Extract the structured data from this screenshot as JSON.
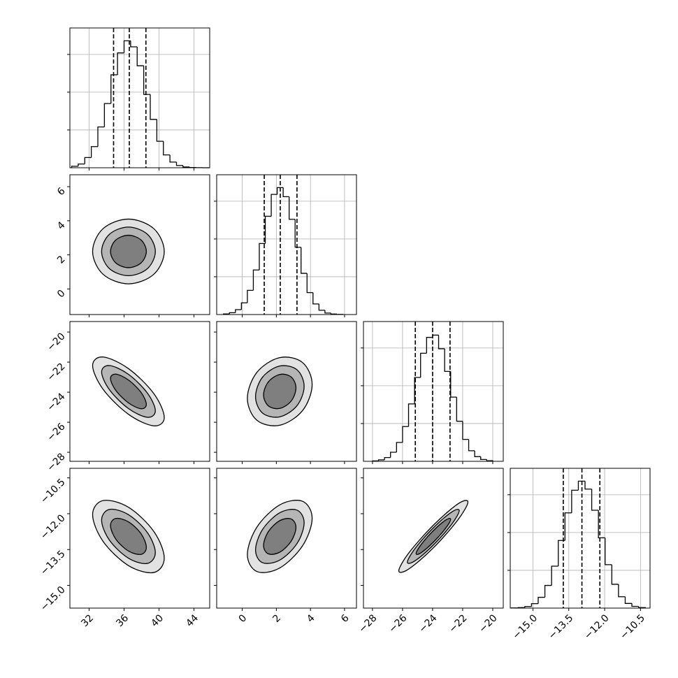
{
  "chart_data": {
    "type": "corner",
    "params": [
      {
        "lim": [
          29.8,
          45.8
        ],
        "ticks": [
          32,
          36,
          40,
          44
        ]
      },
      {
        "lim": [
          -1.5,
          6.7
        ],
        "ticks": [
          0,
          2,
          4,
          6
        ]
      },
      {
        "lim": [
          -28.6,
          -19.3
        ],
        "ticks": [
          {
            "value": -28,
            "label": "−28"
          },
          {
            "value": -26,
            "label": "−26"
          },
          {
            "value": -24,
            "label": "−24"
          },
          {
            "value": -22,
            "label": "−22"
          },
          {
            "value": -20,
            "label": "−20"
          }
        ]
      },
      {
        "lim": [
          -15.95,
          -10.1
        ],
        "ticks": [
          {
            "value": -15,
            "label": "−15.0"
          },
          {
            "value": -13.5,
            "label": "−13.5"
          },
          {
            "value": -12,
            "label": "−12.0"
          },
          {
            "value": -10.5,
            "label": "−10.5"
          }
        ]
      }
    ],
    "hist": [
      {
        "bins": [
          30,
          30.75,
          31.5,
          32.25,
          33,
          33.75,
          34.5,
          35.25,
          36,
          36.75,
          37.5,
          38.25,
          39,
          39.75,
          40.5,
          41.25,
          42,
          42.75,
          43.5,
          44.25,
          45,
          45.75
        ],
        "counts": [
          20,
          50,
          135,
          280,
          540,
          850,
          1230,
          1520,
          1680,
          1600,
          1350,
          970,
          640,
          350,
          170,
          75,
          30,
          10,
          3,
          1,
          0
        ],
        "quantiles": [
          34.8,
          36.6,
          38.5
        ],
        "ylim": [
          0,
          1850
        ],
        "yticks": [
          500,
          1000,
          1500
        ]
      },
      {
        "bins": [
          -1.1,
          -0.75,
          -0.4,
          -0.05,
          0.3,
          0.65,
          1,
          1.35,
          1.7,
          2.05,
          2.4,
          2.75,
          3.1,
          3.45,
          3.8,
          4.15,
          4.5,
          4.85,
          5.2,
          5.55,
          5.9
        ],
        "counts": [
          8,
          24,
          65,
          155,
          320,
          590,
          940,
          1300,
          1590,
          1680,
          1560,
          1260,
          890,
          545,
          290,
          140,
          57,
          20,
          7,
          2
        ],
        "quantiles": [
          1.29,
          2.23,
          3.21
        ],
        "ylim": [
          0,
          1850
        ],
        "yticks": [
          500,
          1000,
          1500
        ]
      },
      {
        "bins": [
          -28,
          -27.6,
          -27.2,
          -26.8,
          -26.4,
          -26,
          -25.6,
          -25.2,
          -24.8,
          -24.4,
          -24,
          -23.6,
          -23.2,
          -22.8,
          -22.4,
          -22,
          -21.6,
          -21.2,
          -20.8,
          -20.4,
          -20
        ],
        "counts": [
          6,
          19,
          50,
          120,
          250,
          460,
          760,
          1110,
          1430,
          1640,
          1670,
          1490,
          1190,
          850,
          530,
          290,
          140,
          62,
          24,
          8
        ],
        "quantiles": [
          -25.15,
          -24.0,
          -22.84
        ],
        "ylim": [
          0,
          1850
        ],
        "yticks": [
          500,
          1000,
          1500
        ]
      },
      {
        "bins": [
          -15.9,
          -15.62,
          -15.34,
          -15.06,
          -14.78,
          -14.5,
          -14.22,
          -13.94,
          -13.66,
          -13.38,
          -13.1,
          -12.82,
          -12.54,
          -12.26,
          -11.98,
          -11.7,
          -11.42,
          -11.14,
          -10.86,
          -10.58,
          -10.3
        ],
        "counts": [
          2,
          7,
          21,
          59,
          143,
          300,
          555,
          895,
          1260,
          1560,
          1680,
          1575,
          1295,
          930,
          575,
          315,
          150,
          62,
          23,
          7
        ],
        "quantiles": [
          -13.73,
          -12.95,
          -12.2
        ],
        "ylim": [
          0,
          1850
        ],
        "yticks": [
          500,
          1000,
          1500
        ]
      }
    ],
    "pairs": [
      {
        "contours": [
          {
            "x": [
              40.6,
              39.4,
              36.5,
              33.6,
              32.4,
              33.6,
              36.5,
              39.4
            ],
            "y": [
              2.2,
              3.54,
              4.1,
              3.54,
              2.2,
              0.86,
              0.3,
              0.86
            ]
          },
          {
            "x": [
              39.58,
              38.67,
              36.5,
              34.33,
              33.43,
              34.33,
              36.5,
              38.67
            ],
            "y": [
              2.2,
              3.21,
              3.63,
              3.21,
              2.2,
              1.19,
              0.78,
              1.19
            ]
          },
          {
            "x": [
              38.55,
              37.95,
              36.5,
              35.05,
              34.45,
              35.05,
              36.5,
              37.95
            ],
            "y": [
              2.2,
              2.87,
              3.15,
              2.87,
              2.2,
              1.53,
              1.25,
              1.53
            ]
          }
        ]
      },
      {
        "contours": [
          {
            "x": [
              40.6,
              39.4,
              36.5,
              33.6,
              32.4,
              33.6,
              36.5,
              39.4
            ],
            "y": [
              -25.68,
              -24.09,
              -22.43,
              -21.66,
              -22.23,
              -23.81,
              -25.47,
              -26.24
            ]
          },
          {
            "x": [
              39.58,
              38.67,
              36.5,
              34.33,
              33.43,
              34.33,
              36.5,
              38.67
            ],
            "y": [
              -25.24,
              -24.06,
              -22.81,
              -22.23,
              -22.66,
              -23.84,
              -25.09,
              -25.67
            ]
          },
          {
            "x": [
              38.55,
              37.95,
              36.5,
              35.05,
              34.45,
              35.05,
              36.5,
              37.95
            ],
            "y": [
              -24.81,
              -24.02,
              -23.19,
              -22.8,
              -23.09,
              -23.88,
              -24.71,
              -25.1
            ]
          }
        ]
      },
      {
        "contours": [
          {
            "x": [
              4.1,
              3.54,
              2.2,
              0.86,
              0.3,
              0.86,
              2.2,
              3.54
            ],
            "y": [
              -23.49,
              -22.03,
              -21.7,
              -22.68,
              -24.41,
              -25.87,
              -26.2,
              -25.22
            ]
          },
          {
            "x": [
              3.63,
              3.21,
              2.2,
              1.19,
              0.78,
              1.19,
              2.2,
              3.21
            ],
            "y": [
              -23.61,
              -22.51,
              -22.26,
              -23.0,
              -24.3,
              -25.39,
              -25.64,
              -24.9
            ]
          },
          {
            "x": [
              3.15,
              2.87,
              2.2,
              1.53,
              1.25,
              1.53,
              2.2,
              2.87
            ],
            "y": [
              -23.72,
              -22.99,
              -22.82,
              -23.32,
              -24.18,
              -24.91,
              -25.08,
              -24.59
            ]
          }
        ]
      },
      {
        "contours": [
          {
            "x": [
              40.6,
              39.4,
              36.5,
              33.6,
              32.4,
              33.6,
              36.5,
              39.4
            ],
            "y": [
              -13.86,
              -12.74,
              -11.73,
              -11.45,
              -12.04,
              -13.16,
              -14.17,
              -14.46
            ]
          },
          {
            "x": [
              39.58,
              38.67,
              36.5,
              34.33,
              33.43,
              34.33,
              36.5,
              38.67
            ],
            "y": [
              -13.63,
              -12.79,
              -12.04,
              -11.82,
              -12.27,
              -13.11,
              -13.86,
              -14.08
            ]
          },
          {
            "x": [
              38.55,
              37.95,
              36.5,
              35.05,
              34.45,
              35.05,
              36.5,
              37.95
            ],
            "y": [
              -13.41,
              -12.84,
              -12.34,
              -12.2,
              -12.49,
              -13.06,
              -13.56,
              -13.7
            ]
          }
        ]
      },
      {
        "contours": [
          {
            "x": [
              4.1,
              3.54,
              2.2,
              0.86,
              0.3,
              0.86,
              2.2,
              3.54
            ],
            "y": [
              -12.19,
              -11.48,
              -11.63,
              -12.56,
              -13.71,
              -14.42,
              -14.27,
              -13.34
            ]
          },
          {
            "x": [
              3.63,
              3.21,
              2.2,
              1.19,
              0.78,
              1.19,
              2.2,
              3.21
            ],
            "y": [
              -12.38,
              -11.85,
              -11.96,
              -12.66,
              -13.52,
              -14.05,
              -13.94,
              -13.25
            ]
          },
          {
            "x": [
              3.15,
              2.87,
              2.2,
              1.53,
              1.25,
              1.53,
              2.2,
              2.87
            ],
            "y": [
              -12.57,
              -12.22,
              -12.29,
              -12.75,
              -13.33,
              -13.68,
              -13.61,
              -13.15
            ]
          }
        ]
      },
      {
        "contours": [
          {
            "x": [
              -21.65,
              -22.32,
              -23.95,
              -25.58,
              -26.25,
              -25.58,
              -23.95,
              -22.32
            ],
            "y": [
              -11.51,
              -11.59,
              -12.48,
              -13.64,
              -14.39,
              -14.31,
              -13.43,
              -12.26
            ]
          },
          {
            "x": [
              -22.23,
              -22.73,
              -23.95,
              -25.17,
              -25.68,
              -25.17,
              -23.95,
              -22.73
            ],
            "y": [
              -11.87,
              -11.93,
              -12.59,
              -13.46,
              -14.03,
              -13.97,
              -13.31,
              -12.44
            ]
          },
          {
            "x": [
              -22.8,
              -23.14,
              -23.95,
              -24.76,
              -25.1,
              -24.76,
              -23.95,
              -23.14
            ],
            "y": [
              -12.23,
              -12.27,
              -12.71,
              -13.29,
              -13.67,
              -13.63,
              -13.19,
              -12.61
            ]
          }
        ]
      }
    ]
  }
}
